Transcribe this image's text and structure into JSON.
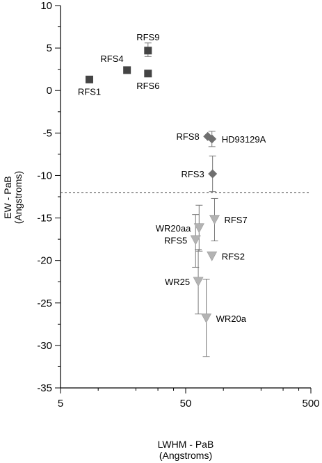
{
  "chart_data": {
    "type": "scatter",
    "xlabel": [
      "LWHM - PaB",
      "(Angstroms)"
    ],
    "ylabel": [
      "EW - PaB",
      "(Angstroms)"
    ],
    "xscale": "log",
    "xlim": [
      5,
      500
    ],
    "ylim": [
      -35,
      10
    ],
    "x_ticks": [
      5,
      50,
      500
    ],
    "x_tick_labels": [
      "5",
      "50",
      "500"
    ],
    "y_ticks": [
      -35,
      -30,
      -25,
      -20,
      -15,
      -10,
      -5,
      0,
      5,
      10
    ],
    "y_tick_labels": [
      "-35",
      "-30",
      "-25",
      "-20",
      "-15",
      "-10",
      "-5",
      "0",
      "5",
      "10"
    ],
    "threshold_y": -12,
    "series": [
      {
        "marker": "square",
        "color": "#444444",
        "points": [
          {
            "label": "RFS1",
            "x": 8.5,
            "y": 1.3,
            "label_pos": "below"
          },
          {
            "label": "RFS4",
            "x": 17.0,
            "y": 2.4,
            "label_pos": "above-left"
          },
          {
            "label": "RFS9",
            "x": 25.0,
            "y": 4.7,
            "label_pos": "above",
            "err_y": [
              4.0,
              5.6
            ]
          },
          {
            "label": "RFS6",
            "x": 25.0,
            "y": 2.0,
            "label_pos": "below"
          }
        ]
      },
      {
        "marker": "diamond",
        "color": "#6f6f6f",
        "points": [
          {
            "label": "RFS8",
            "x": 75.0,
            "y": -5.4,
            "label_pos": "left"
          },
          {
            "label": "HD93129A",
            "x": 81.0,
            "y": -5.7,
            "label_pos": "right",
            "err_y": [
              -6.6,
              -4.8
            ]
          },
          {
            "label": "RFS3",
            "x": 82.0,
            "y": -9.8,
            "label_pos": "left",
            "err_y": [
              -11.9,
              -7.7
            ]
          }
        ]
      },
      {
        "marker": "triangle-down",
        "color": "#b3b3b3",
        "points": [
          {
            "label": "WR20aa",
            "x": 64.0,
            "y": -16.2,
            "label_pos": "left",
            "err_y": [
              -18.9,
              -13.5
            ]
          },
          {
            "label": "RFS7",
            "x": 85.0,
            "y": -15.2,
            "label_pos": "right",
            "err_y": [
              -17.7,
              -12.7
            ]
          },
          {
            "label": "RFS5",
            "x": 60.0,
            "y": -17.6,
            "label_pos": "left",
            "err_y": [
              -20.8,
              -14.6
            ]
          },
          {
            "label": "RFS2",
            "x": 81.0,
            "y": -19.5,
            "label_pos": "right"
          },
          {
            "label": "WR25",
            "x": 63.0,
            "y": -22.5,
            "label_pos": "left",
            "err_y": [
              -26.3,
              -18.7
            ]
          },
          {
            "label": "WR20a",
            "x": 73.0,
            "y": -26.8,
            "label_pos": "right",
            "err_y": [
              -31.3,
              -22.2
            ]
          }
        ]
      }
    ]
  }
}
